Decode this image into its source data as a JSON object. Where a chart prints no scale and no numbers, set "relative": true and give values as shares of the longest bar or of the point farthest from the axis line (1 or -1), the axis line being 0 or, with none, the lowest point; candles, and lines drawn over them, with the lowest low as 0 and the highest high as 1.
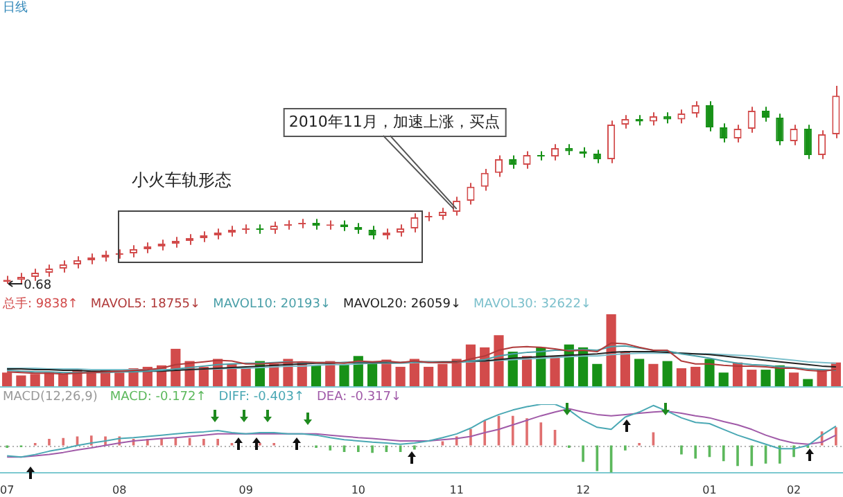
{
  "chart_data": [
    {
      "type": "candlestick",
      "title": "日线",
      "relative": true,
      "tick_labels": false,
      "categories": [
        "07",
        null,
        null,
        null,
        null,
        null,
        null,
        null,
        "08",
        null,
        null,
        null,
        null,
        null,
        null,
        null,
        null,
        "09",
        null,
        null,
        null,
        null,
        null,
        null,
        null,
        "10",
        null,
        null,
        null,
        null,
        null,
        null,
        "11",
        null,
        null,
        null,
        null,
        null,
        null,
        null,
        null,
        "12",
        null,
        null,
        null,
        null,
        null,
        null,
        null,
        null,
        "01",
        null,
        null,
        null,
        null,
        null,
        "02",
        null,
        null,
        null
      ],
      "ohlc": [
        [
          0.01,
          0.04,
          0,
          0.02
        ],
        [
          0.02,
          0.055,
          0,
          0.035
        ],
        [
          0.035,
          0.076,
          0.015,
          0.056
        ],
        [
          0.056,
          0.097,
          0.036,
          0.077
        ],
        [
          0.077,
          0.118,
          0.057,
          0.098
        ],
        [
          0.098,
          0.139,
          0.078,
          0.119
        ],
        [
          0.119,
          0.153,
          0.099,
          0.133
        ],
        [
          0.133,
          0.167,
          0.113,
          0.147
        ],
        [
          0.147,
          0.174,
          0.127,
          0.154
        ],
        [
          0.154,
          0.195,
          0.134,
          0.175
        ],
        [
          0.175,
          0.209,
          0.155,
          0.189
        ],
        [
          0.189,
          0.223,
          0.169,
          0.203
        ],
        [
          0.203,
          0.237,
          0.183,
          0.217
        ],
        [
          0.217,
          0.251,
          0.197,
          0.231
        ],
        [
          0.231,
          0.265,
          0.211,
          0.245
        ],
        [
          0.245,
          0.279,
          0.225,
          0.259
        ],
        [
          0.259,
          0.293,
          0.239,
          0.273
        ],
        [
          0.273,
          0.3,
          0.253,
          0.28
        ],
        [
          0.28,
          0.3,
          0.253,
          0.273
        ],
        [
          0.273,
          0.314,
          0.253,
          0.294
        ],
        [
          0.294,
          0.321,
          0.274,
          0.301
        ],
        [
          0.301,
          0.328,
          0.281,
          0.308
        ],
        [
          0.308,
          0.328,
          0.274,
          0.294
        ],
        [
          0.294,
          0.32,
          0.274,
          0.3
        ],
        [
          0.3,
          0.32,
          0.267,
          0.287
        ],
        [
          0.287,
          0.307,
          0.253,
          0.273
        ],
        [
          0.273,
          0.293,
          0.225,
          0.245
        ],
        [
          0.245,
          0.279,
          0.225,
          0.259
        ],
        [
          0.259,
          0.3,
          0.239,
          0.28
        ],
        [
          0.28,
          0.356,
          0.26,
          0.336
        ],
        [
          0.336,
          0.363,
          0.316,
          0.343
        ],
        [
          0.343,
          0.384,
          0.323,
          0.364
        ],
        [
          0.364,
          0.44,
          0.344,
          0.42
        ],
        [
          0.42,
          0.51,
          0.4,
          0.49
        ],
        [
          0.49,
          0.58,
          0.47,
          0.56
        ],
        [
          0.56,
          0.649,
          0.54,
          0.629
        ],
        [
          0.629,
          0.649,
          0.581,
          0.601
        ],
        [
          0.601,
          0.67,
          0.581,
          0.65
        ],
        [
          0.65,
          0.67,
          0.623,
          0.643
        ],
        [
          0.643,
          0.705,
          0.623,
          0.685
        ],
        [
          0.685,
          0.705,
          0.65,
          0.67
        ],
        [
          0.67,
          0.69,
          0.637,
          0.657
        ],
        [
          0.657,
          0.677,
          0.609,
          0.629
        ],
        [
          0.629,
          0.824,
          0.609,
          0.804
        ],
        [
          0.804,
          0.852,
          0.784,
          0.832
        ],
        [
          0.832,
          0.852,
          0.8,
          0.82
        ],
        [
          0.82,
          0.866,
          0.8,
          0.846
        ],
        [
          0.846,
          0.866,
          0.81,
          0.83
        ],
        [
          0.83,
          0.88,
          0.81,
          0.86
        ],
        [
          0.86,
          0.922,
          0.84,
          0.902
        ],
        [
          0.902,
          0.922,
          0.77,
          0.79
        ],
        [
          0.79,
          0.81,
          0.714,
          0.734
        ],
        [
          0.734,
          0.803,
          0.714,
          0.783
        ],
        [
          0.783,
          0.894,
          0.763,
          0.874
        ],
        [
          0.874,
          0.894,
          0.819,
          0.839
        ],
        [
          0.839,
          0.859,
          0.7,
          0.72
        ],
        [
          0.72,
          0.803,
          0.7,
          0.783
        ],
        [
          0.783,
          0.803,
          0.63,
          0.65
        ],
        [
          0.65,
          0.775,
          0.63,
          0.755
        ],
        [
          0.755,
          1,
          0.735,
          0.95
        ]
      ],
      "colors": [
        "#d24b4b",
        "#d24b4b",
        "#d24b4b",
        "#d24b4b",
        "#d24b4b",
        "#d24b4b",
        "#d24b4b",
        "#d24b4b",
        "#d24b4b",
        "#d24b4b",
        "#d24b4b",
        "#d24b4b",
        "#d24b4b",
        "#d24b4b",
        "#d24b4b",
        "#d24b4b",
        "#d24b4b",
        "#d24b4b",
        "#179117",
        "#d24b4b",
        "#d24b4b",
        "#d24b4b",
        "#179117",
        "#d24b4b",
        "#179117",
        "#179117",
        "#179117",
        "#d24b4b",
        "#d24b4b",
        "#d24b4b",
        "#d24b4b",
        "#d24b4b",
        "#d24b4b",
        "#d24b4b",
        "#d24b4b",
        "#d24b4b",
        "#179117",
        "#d24b4b",
        "#179117",
        "#d24b4b",
        "#179117",
        "#179117",
        "#179117",
        "#d24b4b",
        "#d24b4b",
        "#179117",
        "#d24b4b",
        "#179117",
        "#d24b4b",
        "#d24b4b",
        "#179117",
        "#179117",
        "#d24b4b",
        "#d24b4b",
        "#179117",
        "#179117",
        "#d24b4b",
        "#179117",
        "#d24b4b",
        "#d24b4b"
      ],
      "annotations": [
        {
          "text": "0.68",
          "x": "07",
          "y": 0
        },
        {
          "text": "2010年11月，加速上涨，买点",
          "x": "11",
          "y": 0.364
        },
        "小火车轨形态"
      ]
    },
    {
      "type": "bar",
      "relative": true,
      "tick_labels": false,
      "legend": "top left",
      "categories": [
        "07",
        null,
        null,
        null,
        null,
        null,
        null,
        null,
        "08",
        null,
        null,
        null,
        null,
        null,
        null,
        null,
        null,
        "09",
        null,
        null,
        null,
        null,
        null,
        null,
        null,
        "10",
        null,
        null,
        null,
        null,
        null,
        null,
        "11",
        null,
        null,
        null,
        null,
        null,
        null,
        null,
        null,
        "12",
        null,
        null,
        null,
        null,
        null,
        null,
        null,
        null,
        "01",
        null,
        null,
        null,
        null,
        null,
        "02",
        null,
        null,
        null
      ],
      "series": [
        {
          "name": "总手: 9838↑",
          "type": "bar",
          "colors": [
            "#d24b4b",
            "#d24b4b",
            "#d24b4b",
            "#d24b4b",
            "#d24b4b",
            "#d24b4b",
            "#d24b4b",
            "#d24b4b",
            "#d24b4b",
            "#d24b4b",
            "#d24b4b",
            "#d24b4b",
            "#d24b4b",
            "#d24b4b",
            "#d24b4b",
            "#d24b4b",
            "#d24b4b",
            "#d24b4b",
            "#179117",
            "#d24b4b",
            "#d24b4b",
            "#d24b4b",
            "#179117",
            "#d24b4b",
            "#179117",
            "#179117",
            "#179117",
            "#d24b4b",
            "#d24b4b",
            "#d24b4b",
            "#d24b4b",
            "#d24b4b",
            "#d24b4b",
            "#d24b4b",
            "#d24b4b",
            "#d24b4b",
            "#179117",
            "#d24b4b",
            "#179117",
            "#d24b4b",
            "#179117",
            "#179117",
            "#179117",
            "#d24b4b",
            "#d24b4b",
            "#179117",
            "#d24b4b",
            "#179117",
            "#d24b4b",
            "#d24b4b",
            "#179117",
            "#179117",
            "#d24b4b",
            "#d24b4b",
            "#179117",
            "#179117",
            "#d24b4b",
            "#179117",
            "#d24b4b",
            "#d24b4b"
          ],
          "values": [
            0.19,
            0.15,
            0.17,
            0.19,
            0.17,
            0.23,
            0.21,
            0.23,
            0.19,
            0.25,
            0.27,
            0.29,
            0.52,
            0.35,
            0.27,
            0.38,
            0.31,
            0.25,
            0.35,
            0.31,
            0.38,
            0.33,
            0.29,
            0.35,
            0.31,
            0.42,
            0.33,
            0.37,
            0.27,
            0.38,
            0.27,
            0.31,
            0.38,
            0.58,
            0.54,
            0.71,
            0.48,
            0.42,
            0.54,
            0.42,
            0.58,
            0.54,
            0.31,
            1,
            0.48,
            0.38,
            0.31,
            0.35,
            0.25,
            0.27,
            0.38,
            0.19,
            0.33,
            0.23,
            0.23,
            0.29,
            0.19,
            0.1,
            0.23,
            0.33
          ]
        },
        {
          "name": "MAVOL5: 18755↓",
          "type": "line",
          "color": "#b03a3a",
          "values": [
            0.2,
            0.19,
            0.18,
            0.18,
            0.17,
            0.18,
            0.19,
            0.2,
            0.21,
            0.22,
            0.23,
            0.25,
            0.3,
            0.32,
            0.34,
            0.36,
            0.35,
            0.31,
            0.31,
            0.32,
            0.33,
            0.34,
            0.33,
            0.33,
            0.32,
            0.35,
            0.34,
            0.35,
            0.33,
            0.35,
            0.33,
            0.33,
            0.33,
            0.38,
            0.42,
            0.5,
            0.54,
            0.55,
            0.54,
            0.52,
            0.49,
            0.5,
            0.48,
            0.6,
            0.59,
            0.54,
            0.5,
            0.5,
            0.35,
            0.31,
            0.31,
            0.29,
            0.28,
            0.28,
            0.27,
            0.25,
            0.25,
            0.22,
            0.21,
            0.23
          ]
        },
        {
          "name": "MAVOL10: 20193↓",
          "type": "line",
          "color": "#4a9fa8",
          "values": [
            0.22,
            0.21,
            0.2,
            0.2,
            0.19,
            0.19,
            0.19,
            0.19,
            0.2,
            0.2,
            0.21,
            0.22,
            0.24,
            0.26,
            0.28,
            0.3,
            0.31,
            0.32,
            0.32,
            0.33,
            0.34,
            0.33,
            0.33,
            0.33,
            0.33,
            0.34,
            0.34,
            0.34,
            0.33,
            0.34,
            0.34,
            0.33,
            0.33,
            0.35,
            0.37,
            0.42,
            0.45,
            0.47,
            0.48,
            0.5,
            0.5,
            0.51,
            0.5,
            0.55,
            0.56,
            0.53,
            0.5,
            0.49,
            0.45,
            0.42,
            0.39,
            0.35,
            0.32,
            0.3,
            0.29,
            0.27,
            0.26,
            0.24,
            0.23,
            0.22
          ]
        },
        {
          "name": "MAVOL20: 26059↓",
          "type": "line",
          "color": "#222222",
          "values": [
            0.24,
            0.24,
            0.23,
            0.23,
            0.22,
            0.22,
            0.21,
            0.21,
            0.21,
            0.21,
            0.21,
            0.21,
            0.22,
            0.23,
            0.24,
            0.25,
            0.26,
            0.27,
            0.28,
            0.29,
            0.3,
            0.31,
            0.32,
            0.32,
            0.33,
            0.33,
            0.33,
            0.33,
            0.33,
            0.34,
            0.34,
            0.34,
            0.34,
            0.35,
            0.35,
            0.37,
            0.39,
            0.4,
            0.41,
            0.42,
            0.43,
            0.44,
            0.45,
            0.47,
            0.48,
            0.48,
            0.48,
            0.47,
            0.46,
            0.45,
            0.44,
            0.42,
            0.4,
            0.38,
            0.36,
            0.34,
            0.32,
            0.3,
            0.28,
            0.27
          ]
        },
        {
          "name": "MAVOL30: 32622↓",
          "type": "line",
          "color": "#7cc0cc",
          "values": [
            0.25,
            0.25,
            0.25,
            0.24,
            0.24,
            0.24,
            0.23,
            0.23,
            0.23,
            0.23,
            0.23,
            0.23,
            0.23,
            0.23,
            0.24,
            0.24,
            0.25,
            0.25,
            0.26,
            0.27,
            0.28,
            0.28,
            0.29,
            0.3,
            0.3,
            0.31,
            0.32,
            0.32,
            0.32,
            0.33,
            0.33,
            0.33,
            0.34,
            0.34,
            0.35,
            0.36,
            0.37,
            0.38,
            0.39,
            0.4,
            0.41,
            0.42,
            0.42,
            0.44,
            0.45,
            0.46,
            0.46,
            0.46,
            0.46,
            0.45,
            0.45,
            0.44,
            0.43,
            0.42,
            0.4,
            0.38,
            0.36,
            0.34,
            0.33,
            0.32
          ]
        }
      ]
    },
    {
      "type": "bar",
      "title": "MACD(12,26,9)",
      "relative": true,
      "tick_labels": "x",
      "legend": "top left",
      "ref_lines": [
        {
          "axis": "y",
          "value": 0,
          "color": "#b0b0b0",
          "line_style": "dotted"
        }
      ],
      "categories": [
        "07",
        null,
        null,
        null,
        null,
        null,
        null,
        null,
        "08",
        null,
        null,
        null,
        null,
        null,
        null,
        null,
        null,
        "09",
        null,
        null,
        null,
        null,
        null,
        null,
        null,
        "10",
        null,
        null,
        null,
        null,
        null,
        null,
        "11",
        null,
        null,
        null,
        null,
        null,
        null,
        null,
        null,
        "12",
        null,
        null,
        null,
        null,
        null,
        null,
        null,
        null,
        "01",
        null,
        null,
        null,
        null,
        null,
        "02",
        null,
        null,
        null
      ],
      "series": [
        {
          "name": "MACD: -0.172↑",
          "type": "bar",
          "colors": [
            "#5cb85c",
            "#5cb85c",
            "#e07070",
            "#e07070",
            "#e07070",
            "#e07070",
            "#e07070",
            "#e07070",
            "#e07070",
            "#e07070",
            "#e07070",
            "#e07070",
            "#e07070",
            "#e07070",
            "#e07070",
            "#e07070",
            "#e07070",
            "#e07070",
            "#e07070",
            "#e07070",
            "#e07070",
            "#e07070",
            "#5cb85c",
            "#5cb85c",
            "#5cb85c",
            "#5cb85c",
            "#5cb85c",
            "#5cb85c",
            "#5cb85c",
            "#5cb85c",
            "#e07070",
            "#e07070",
            "#e07070",
            "#e07070",
            "#e07070",
            "#e07070",
            "#e07070",
            "#e07070",
            "#e07070",
            "#e07070",
            "#5cb85c",
            "#5cb85c",
            "#5cb85c",
            "#5cb85c",
            "#5cb85c",
            "#e07070",
            "#e07070",
            "#e07070",
            "#5cb85c",
            "#5cb85c",
            "#5cb85c",
            "#5cb85c",
            "#5cb85c",
            "#5cb85c",
            "#5cb85c",
            "#5cb85c",
            "#5cb85c",
            "#5cb85c",
            "#e07070",
            "#e07070"
          ],
          "values": [
            -0.06,
            -0.04,
            0.06,
            0.16,
            0.18,
            0.22,
            0.24,
            0.22,
            0.22,
            0.16,
            0.16,
            0.16,
            0.18,
            0.18,
            0.16,
            0.16,
            0.06,
            0,
            0.06,
            0.06,
            0,
            0,
            -0.06,
            -0.12,
            -0.16,
            -0.16,
            -0.18,
            -0.16,
            -0.16,
            -0.1,
            0,
            0.1,
            0.22,
            0.4,
            0.6,
            0.72,
            0.72,
            0.66,
            0.56,
            0.38,
            -0.06,
            -0.4,
            -0.62,
            -0.66,
            -0.12,
            0.06,
            0.32,
            0,
            -0.22,
            -0.32,
            -0.28,
            -0.38,
            -0.5,
            -0.5,
            -0.44,
            -0.44,
            -0.28,
            -0.06,
            0.34,
            0.44
          ]
        },
        {
          "name": "DIFF: -0.403↑",
          "type": "line",
          "color": "#4aa8b4",
          "values": [
            -0.25,
            -0.28,
            -0.22,
            -0.14,
            -0.08,
            0,
            0.06,
            0.11,
            0.17,
            0.19,
            0.22,
            0.25,
            0.28,
            0.31,
            0.33,
            0.36,
            0.31,
            0.28,
            0.31,
            0.31,
            0.28,
            0.28,
            0.25,
            0.19,
            0.14,
            0.11,
            0.08,
            0.06,
            0.03,
            0.06,
            0.11,
            0.19,
            0.28,
            0.42,
            0.61,
            0.75,
            0.86,
            0.94,
            1,
            1,
            0.86,
            0.61,
            0.44,
            0.39,
            0.69,
            0.81,
            0.97,
            0.83,
            0.67,
            0.56,
            0.53,
            0.39,
            0.25,
            0.14,
            0.03,
            -0.08,
            -0.08,
            0,
            0.25,
            0.47
          ]
        },
        {
          "name": "DEA: -0.317↓",
          "type": "line",
          "color": "#a05aa8",
          "values": [
            -0.28,
            -0.28,
            -0.25,
            -0.22,
            -0.17,
            -0.11,
            -0.06,
            0,
            0.06,
            0.11,
            0.14,
            0.17,
            0.19,
            0.22,
            0.25,
            0.28,
            0.28,
            0.28,
            0.28,
            0.28,
            0.28,
            0.28,
            0.28,
            0.25,
            0.22,
            0.19,
            0.17,
            0.14,
            0.11,
            0.11,
            0.11,
            0.14,
            0.17,
            0.22,
            0.31,
            0.39,
            0.5,
            0.61,
            0.72,
            0.81,
            0.89,
            0.81,
            0.75,
            0.72,
            0.75,
            0.78,
            0.81,
            0.83,
            0.78,
            0.72,
            0.67,
            0.58,
            0.5,
            0.39,
            0.25,
            0.14,
            0.06,
            0.03,
            0.08,
            0.25
          ]
        }
      ]
    }
  ]
}
